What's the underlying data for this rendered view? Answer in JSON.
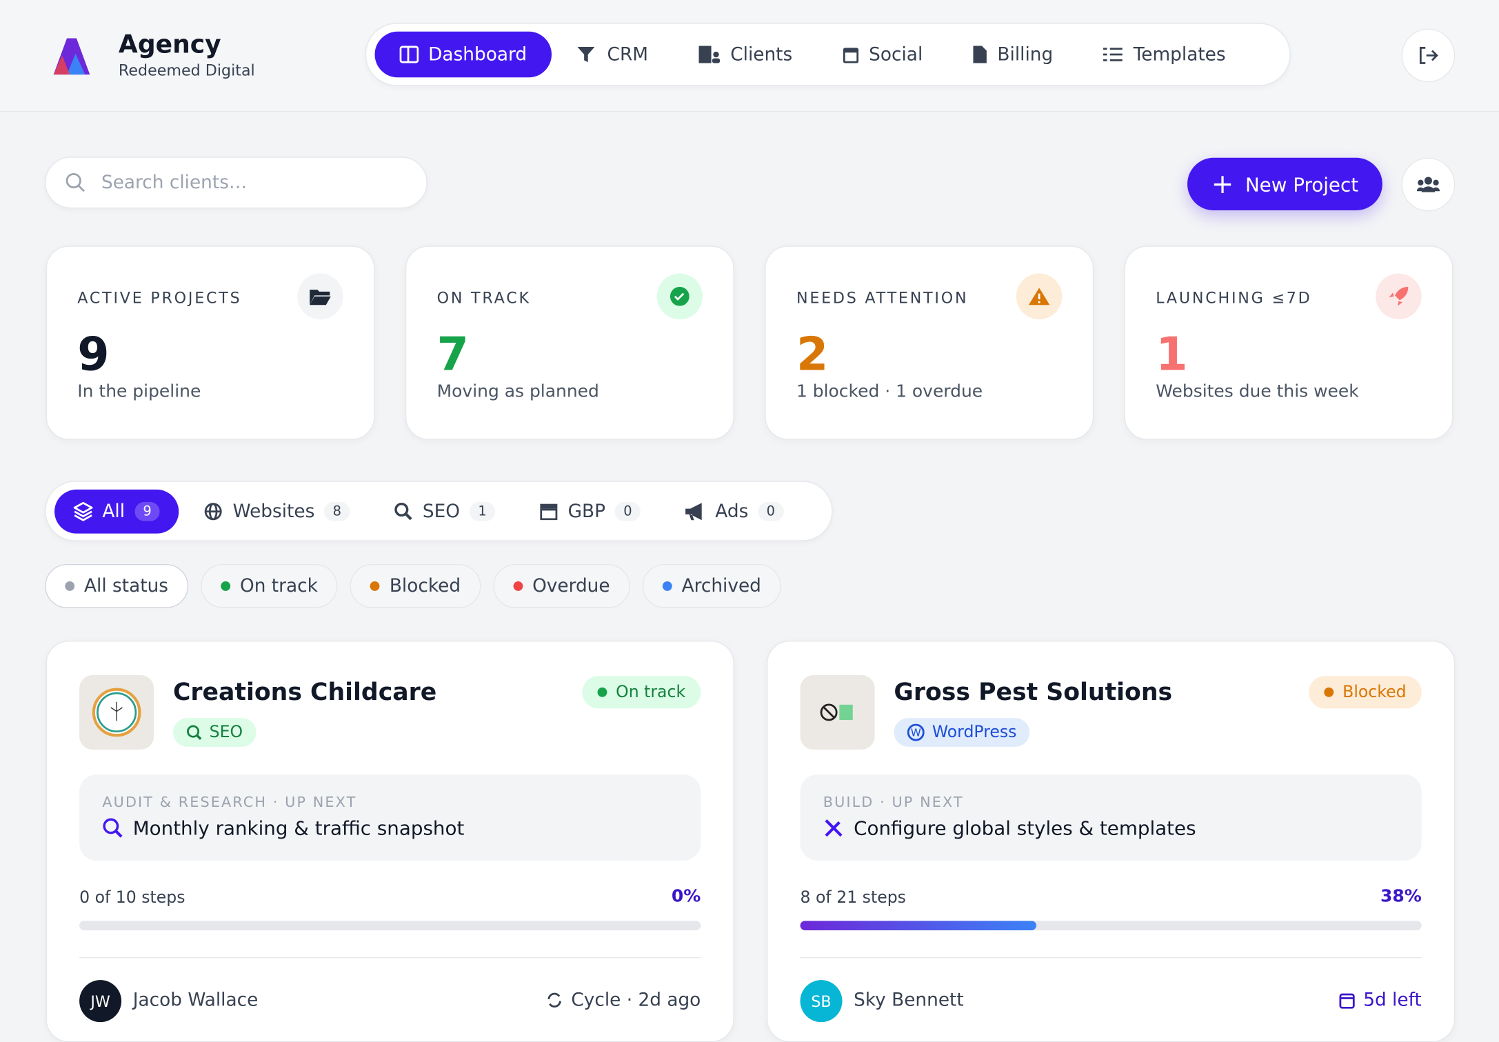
{
  "header": {
    "brand_title": "Agency",
    "brand_subtitle": "Redeemed Digital",
    "nav": [
      "Dashboard",
      "CRM",
      "Clients",
      "Social",
      "Billing",
      "Templates"
    ]
  },
  "toolbar": {
    "search_placeholder": "Search clients…",
    "new_project": "New Project"
  },
  "stats": [
    {
      "label": "ACTIVE PROJECTS",
      "value": 9,
      "note": "In the pipeline"
    },
    {
      "label": "ON TRACK",
      "value": 7,
      "note": "Moving as planned"
    },
    {
      "label": "NEEDS ATTENTION",
      "value": 2,
      "note": "1 blocked · 1 overdue"
    },
    {
      "label": "LAUNCHING ≤7D",
      "value": 1,
      "note": "Websites due this week"
    }
  ],
  "type_tabs": [
    {
      "label": "All",
      "count": 9
    },
    {
      "label": "Websites",
      "count": 8
    },
    {
      "label": "SEO",
      "count": 1
    },
    {
      "label": "GBP",
      "count": 0
    },
    {
      "label": "Ads",
      "count": 0
    }
  ],
  "status_filters": [
    "All status",
    "On track",
    "Blocked",
    "Overdue",
    "Archived"
  ],
  "projects": [
    {
      "name": "Creations Childcare",
      "tag": "SEO",
      "status": "On track",
      "phase": "AUDIT & RESEARCH · UP NEXT",
      "task": "Monthly ranking & traffic snapshot",
      "steps": "0 of 10 steps",
      "progress": 0,
      "progress_label": "0%",
      "owner_initials": "JW",
      "owner": "Jacob Wallace",
      "meta": "Cycle · 2d ago"
    },
    {
      "name": "Gross Pest Solutions",
      "tag": "WordPress",
      "status": "Blocked",
      "phase": "BUILD · UP NEXT",
      "task": "Configure global styles & templates",
      "steps": "8 of 21 steps",
      "progress": 38,
      "progress_label": "38%",
      "owner_initials": "SB",
      "owner": "Sky Bennett",
      "meta": "5d left"
    }
  ]
}
